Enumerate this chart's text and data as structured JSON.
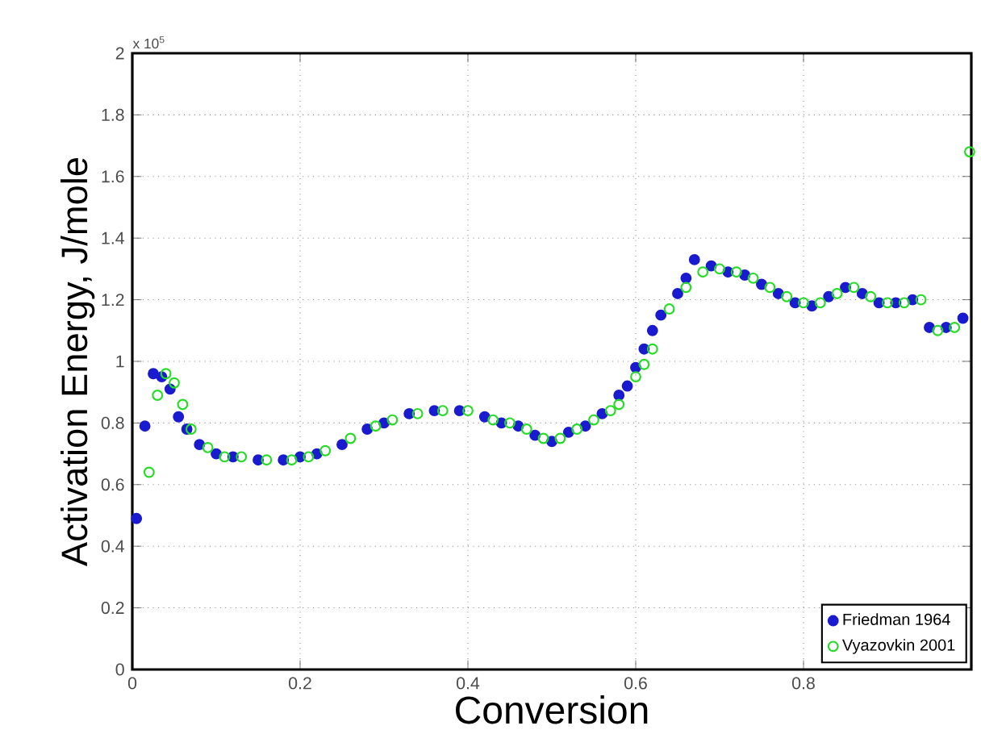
{
  "chart_data": {
    "type": "scatter",
    "xlabel": "Conversion",
    "ylabel": "Activation Energy, J/mole",
    "annotations": [
      "x 10$^{5}$"
    ],
    "xlim": [
      0,
      1
    ],
    "ylim": [
      0,
      2
    ],
    "xticks": [
      0,
      0.2,
      0.4,
      0.6,
      0.8
    ],
    "yticks": [
      0,
      0.2,
      0.4,
      0.6,
      0.8,
      1,
      1.2,
      1.4,
      1.6,
      1.8,
      2
    ],
    "grid": true,
    "legend": "bottom right",
    "marker": "circle",
    "series": [
      {
        "name": "Friedman 1964",
        "color": "#1a1ad0",
        "x": [
          0.005,
          0.015,
          0.025,
          0.035,
          0.045,
          0.055,
          0.065,
          0.08,
          0.1,
          0.12,
          0.15,
          0.18,
          0.2,
          0.22,
          0.25,
          0.28,
          0.3,
          0.33,
          0.36,
          0.39,
          0.42,
          0.44,
          0.46,
          0.48,
          0.5,
          0.52,
          0.54,
          0.56,
          0.58,
          0.59,
          0.6,
          0.61,
          0.62,
          0.63,
          0.65,
          0.66,
          0.67,
          0.69,
          0.71,
          0.73,
          0.75,
          0.77,
          0.79,
          0.81,
          0.83,
          0.85,
          0.87,
          0.89,
          0.91,
          0.93,
          0.95,
          0.97,
          0.99
        ],
        "values": [
          0.49,
          0.79,
          0.96,
          0.95,
          0.91,
          0.82,
          0.78,
          0.73,
          0.7,
          0.69,
          0.68,
          0.68,
          0.69,
          0.7,
          0.73,
          0.78,
          0.8,
          0.83,
          0.84,
          0.84,
          0.82,
          0.8,
          0.79,
          0.76,
          0.74,
          0.77,
          0.79,
          0.83,
          0.89,
          0.92,
          0.98,
          1.04,
          1.1,
          1.15,
          1.22,
          1.27,
          1.33,
          1.31,
          1.29,
          1.28,
          1.25,
          1.22,
          1.19,
          1.18,
          1.21,
          1.24,
          1.22,
          1.19,
          1.19,
          1.2,
          1.11,
          1.11,
          1.14
        ]
      },
      {
        "name": "Vyazovkin 2001",
        "color": "#22dd22",
        "x": [
          0.02,
          0.03,
          0.04,
          0.05,
          0.06,
          0.07,
          0.09,
          0.11,
          0.13,
          0.16,
          0.19,
          0.21,
          0.23,
          0.26,
          0.29,
          0.31,
          0.34,
          0.37,
          0.4,
          0.43,
          0.45,
          0.47,
          0.49,
          0.51,
          0.53,
          0.55,
          0.57,
          0.58,
          0.6,
          0.61,
          0.62,
          0.64,
          0.66,
          0.68,
          0.7,
          0.72,
          0.74,
          0.76,
          0.78,
          0.8,
          0.82,
          0.84,
          0.86,
          0.88,
          0.9,
          0.92,
          0.94,
          0.96,
          0.98,
          0.998
        ],
        "values": [
          0.64,
          0.89,
          0.96,
          0.93,
          0.86,
          0.78,
          0.72,
          0.69,
          0.69,
          0.68,
          0.68,
          0.69,
          0.71,
          0.75,
          0.79,
          0.81,
          0.83,
          0.84,
          0.84,
          0.81,
          0.8,
          0.78,
          0.75,
          0.75,
          0.78,
          0.81,
          0.84,
          0.86,
          0.95,
          0.99,
          1.04,
          1.17,
          1.24,
          1.29,
          1.3,
          1.29,
          1.27,
          1.24,
          1.21,
          1.19,
          1.19,
          1.22,
          1.24,
          1.21,
          1.19,
          1.19,
          1.2,
          1.1,
          1.11,
          1.68
        ]
      }
    ]
  }
}
